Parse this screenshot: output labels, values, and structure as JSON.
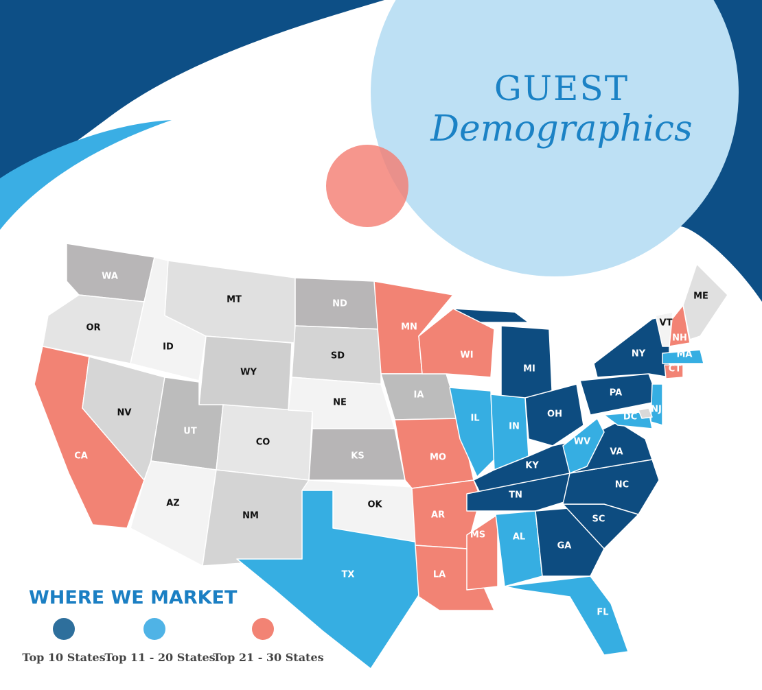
{
  "header": {
    "title_line1": "GUEST",
    "title_line2": "Demographics"
  },
  "states": [
    {
      "label": "WA",
      "color": "#b8b6b7"
    },
    {
      "label": "OR",
      "color": "#e4e4e4"
    },
    {
      "label": "CA",
      "color": "#f28374"
    },
    {
      "label": "ID",
      "color": "#f3f3f3"
    },
    {
      "label": "MT",
      "color": "#e0e0e0"
    },
    {
      "label": "WY",
      "color": "#cfcfcf"
    },
    {
      "label": "NV",
      "color": "#d6d6d6"
    },
    {
      "label": "UT",
      "color": "#bcbcbc"
    },
    {
      "label": "CO",
      "color": "#e6e6e6"
    },
    {
      "label": "AZ",
      "color": "#f3f3f3"
    },
    {
      "label": "NM",
      "color": "#d4d4d4"
    },
    {
      "label": "ND",
      "color": "#b8b6b7"
    },
    {
      "label": "SD",
      "color": "#d4d4d4"
    },
    {
      "label": "NE",
      "color": "#f3f3f3"
    },
    {
      "label": "KS",
      "color": "#b7b5b6"
    },
    {
      "label": "OK",
      "color": "#f3f3f3"
    },
    {
      "label": "TX",
      "color": "#36aee2"
    },
    {
      "label": "MN",
      "color": "#f28374"
    },
    {
      "label": "IA",
      "color": "#bcbcbc"
    },
    {
      "label": "MO",
      "color": "#f28374"
    },
    {
      "label": "AR",
      "color": "#f28374"
    },
    {
      "label": "LA",
      "color": "#f28374"
    },
    {
      "label": "MS",
      "color": "#f28374"
    },
    {
      "label": "WI",
      "color": "#f28374"
    },
    {
      "label": "MI",
      "color": "#0d4c80"
    },
    {
      "label": "IL",
      "color": "#36aee2"
    },
    {
      "label": "IN",
      "color": "#36aee2"
    },
    {
      "label": "OH",
      "color": "#0d4c80"
    },
    {
      "label": "KY",
      "color": "#0d4c80"
    },
    {
      "label": "TN",
      "color": "#0d4c80"
    },
    {
      "label": "AL",
      "color": "#36aee2"
    },
    {
      "label": "GA",
      "color": "#0d4c80"
    },
    {
      "label": "FL",
      "color": "#36aee2"
    },
    {
      "label": "SC",
      "color": "#0d4c80"
    },
    {
      "label": "NC",
      "color": "#0d4c80"
    },
    {
      "label": "VA",
      "color": "#0d4c80"
    },
    {
      "label": "WV",
      "color": "#36aee2"
    },
    {
      "label": "PA",
      "color": "#0d4c80"
    },
    {
      "label": "NY",
      "color": "#0d4c80"
    },
    {
      "label": "NJ",
      "color": "#36aee2"
    },
    {
      "label": "DC",
      "color": "#36aee2"
    },
    {
      "label": "MA",
      "color": "#36aee2"
    },
    {
      "label": "CT",
      "color": "#f28374"
    },
    {
      "label": "NH",
      "color": "#f28374"
    },
    {
      "label": "VT",
      "color": "#f3f3f3"
    },
    {
      "label": "ME",
      "color": "#e0e0e0"
    },
    {
      "color": "#d9d9d9"
    }
  ],
  "legend": {
    "title": "WHERE WE MARKET",
    "items": [
      {
        "label": "Top 10 States",
        "color": "#2e6f9c"
      },
      {
        "label": "Top 11 - 20 States",
        "color": "#4fb3e6"
      },
      {
        "label": "Top 21 - 30 States",
        "color": "#f28374"
      }
    ]
  }
}
